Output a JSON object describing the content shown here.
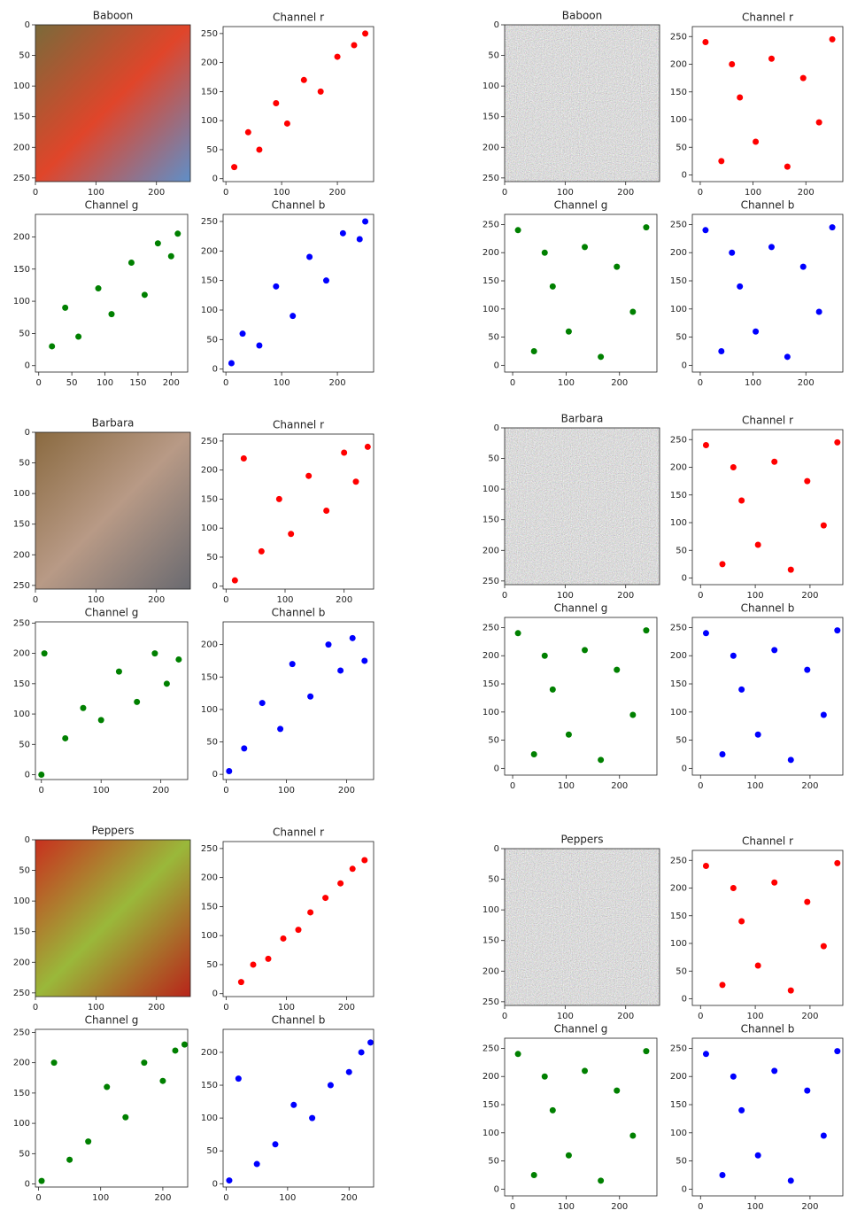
{
  "chart_data": [
    {
      "type": "image",
      "title": "Baboon",
      "xlim": [
        0,
        256
      ],
      "ylim": [
        256,
        0
      ],
      "xticks": [
        0,
        100,
        200
      ],
      "yticks": [
        0,
        50,
        100,
        150,
        200,
        250
      ]
    },
    {
      "type": "scatter",
      "title": "Channel r",
      "color": "red",
      "xlim": [
        -5,
        265
      ],
      "ylim": [
        -5,
        262
      ],
      "xticks": [
        0,
        100,
        200
      ],
      "yticks": [
        0,
        50,
        100,
        150,
        200,
        250
      ],
      "x": [
        15,
        40,
        60,
        90,
        110,
        140,
        170,
        200,
        230,
        250
      ],
      "y": [
        20,
        80,
        50,
        130,
        95,
        170,
        150,
        210,
        230,
        250
      ]
    },
    {
      "type": "scatter",
      "title": "Channel g",
      "color": "green",
      "xlim": [
        -5,
        225
      ],
      "ylim": [
        -10,
        235
      ],
      "xticks": [
        0,
        50,
        100,
        150,
        200
      ],
      "yticks": [
        0,
        50,
        100,
        150,
        200
      ],
      "x": [
        20,
        40,
        60,
        90,
        110,
        140,
        160,
        180,
        200,
        210
      ],
      "y": [
        30,
        90,
        45,
        120,
        80,
        160,
        110,
        190,
        170,
        205
      ]
    },
    {
      "type": "scatter",
      "title": "Channel b",
      "color": "blue",
      "xlim": [
        -5,
        265
      ],
      "ylim": [
        -5,
        262
      ],
      "xticks": [
        0,
        100,
        200
      ],
      "yticks": [
        0,
        50,
        100,
        150,
        200,
        250
      ],
      "x": [
        10,
        30,
        60,
        90,
        120,
        150,
        180,
        210,
        240,
        250
      ],
      "y": [
        10,
        60,
        40,
        140,
        90,
        190,
        150,
        230,
        220,
        250
      ]
    },
    {
      "type": "image",
      "title": "Baboon",
      "xlim": [
        0,
        256
      ],
      "ylim": [
        256,
        0
      ],
      "xticks": [
        0,
        100,
        200
      ],
      "yticks": [
        0,
        50,
        100,
        150,
        200,
        250
      ]
    },
    {
      "type": "scatter",
      "title": "Channel r",
      "color": "red",
      "xlim": [
        -15,
        270
      ],
      "ylim": [
        -12,
        268
      ],
      "xticks": [
        0,
        100,
        200
      ],
      "yticks": [
        0,
        50,
        100,
        150,
        200,
        250
      ],
      "x": [
        10,
        40,
        75,
        105,
        135,
        165,
        195,
        225,
        250,
        60
      ],
      "y": [
        240,
        25,
        140,
        60,
        210,
        15,
        175,
        95,
        245,
        200
      ]
    },
    {
      "type": "scatter",
      "title": "Channel g",
      "color": "green",
      "xlim": [
        -15,
        270
      ],
      "ylim": [
        -12,
        268
      ],
      "xticks": [
        0,
        100,
        200
      ],
      "yticks": [
        0,
        50,
        100,
        150,
        200,
        250
      ],
      "x": [
        10,
        40,
        75,
        105,
        135,
        165,
        195,
        225,
        250,
        60
      ],
      "y": [
        240,
        25,
        140,
        60,
        210,
        15,
        175,
        95,
        245,
        200
      ]
    },
    {
      "type": "scatter",
      "title": "Channel b",
      "color": "blue",
      "xlim": [
        -15,
        270
      ],
      "ylim": [
        -12,
        268
      ],
      "xticks": [
        0,
        100,
        200
      ],
      "yticks": [
        0,
        50,
        100,
        150,
        200,
        250
      ],
      "x": [
        10,
        40,
        75,
        105,
        135,
        165,
        195,
        225,
        250,
        60
      ],
      "y": [
        240,
        25,
        140,
        60,
        210,
        15,
        175,
        95,
        245,
        200
      ]
    },
    {
      "type": "image",
      "title": "Barbara",
      "xlim": [
        0,
        256
      ],
      "ylim": [
        256,
        0
      ],
      "xticks": [
        0,
        100,
        200
      ],
      "yticks": [
        0,
        50,
        100,
        150,
        200,
        250
      ]
    },
    {
      "type": "scatter",
      "title": "Channel r",
      "color": "red",
      "xlim": [
        -5,
        250
      ],
      "ylim": [
        -5,
        262
      ],
      "xticks": [
        0,
        100,
        200
      ],
      "yticks": [
        0,
        50,
        100,
        150,
        200,
        250
      ],
      "x": [
        15,
        30,
        60,
        90,
        110,
        140,
        170,
        200,
        220,
        240
      ],
      "y": [
        10,
        220,
        60,
        150,
        90,
        190,
        130,
        230,
        180,
        240
      ]
    },
    {
      "type": "scatter",
      "title": "Channel g",
      "color": "green",
      "xlim": [
        -10,
        245
      ],
      "ylim": [
        -8,
        252
      ],
      "xticks": [
        0,
        100,
        200
      ],
      "yticks": [
        0,
        50,
        100,
        150,
        200,
        250
      ],
      "x": [
        0,
        5,
        40,
        70,
        100,
        130,
        160,
        190,
        210,
        230
      ],
      "y": [
        0,
        200,
        60,
        110,
        90,
        170,
        120,
        200,
        150,
        190
      ]
    },
    {
      "type": "scatter",
      "title": "Channel b",
      "color": "blue",
      "xlim": [
        -5,
        245
      ],
      "ylim": [
        -8,
        235
      ],
      "xticks": [
        0,
        100,
        200
      ],
      "yticks": [
        0,
        50,
        100,
        150,
        200
      ],
      "x": [
        5,
        30,
        60,
        90,
        110,
        140,
        170,
        190,
        210,
        230
      ],
      "y": [
        5,
        40,
        110,
        70,
        170,
        120,
        200,
        160,
        210,
        175
      ]
    },
    {
      "type": "image",
      "title": "Barbara",
      "xlim": [
        0,
        256
      ],
      "ylim": [
        256,
        0
      ],
      "xticks": [
        0,
        100,
        200
      ],
      "yticks": [
        0,
        50,
        100,
        150,
        200,
        250
      ]
    },
    {
      "type": "scatter",
      "title": "Channel r",
      "color": "red",
      "xlim": [
        -15,
        260
      ],
      "ylim": [
        -12,
        268
      ],
      "xticks": [
        0,
        100,
        200
      ],
      "yticks": [
        0,
        50,
        100,
        150,
        200,
        250
      ],
      "x": [
        10,
        40,
        75,
        105,
        135,
        165,
        195,
        225,
        250,
        60
      ],
      "y": [
        240,
        25,
        140,
        60,
        210,
        15,
        175,
        95,
        245,
        200
      ]
    },
    {
      "type": "scatter",
      "title": "Channel g",
      "color": "green",
      "xlim": [
        -15,
        270
      ],
      "ylim": [
        -12,
        268
      ],
      "xticks": [
        0,
        100,
        200
      ],
      "yticks": [
        0,
        50,
        100,
        150,
        200,
        250
      ],
      "x": [
        10,
        40,
        75,
        105,
        135,
        165,
        195,
        225,
        250,
        60
      ],
      "y": [
        240,
        25,
        140,
        60,
        210,
        15,
        175,
        95,
        245,
        200
      ]
    },
    {
      "type": "scatter",
      "title": "Channel b",
      "color": "blue",
      "xlim": [
        -15,
        260
      ],
      "ylim": [
        -12,
        268
      ],
      "xticks": [
        0,
        100,
        200
      ],
      "yticks": [
        0,
        50,
        100,
        150,
        200,
        250
      ],
      "x": [
        10,
        40,
        75,
        105,
        135,
        165,
        195,
        225,
        250,
        60
      ],
      "y": [
        240,
        25,
        140,
        60,
        210,
        15,
        175,
        95,
        245,
        200
      ]
    },
    {
      "type": "image",
      "title": "Peppers",
      "xlim": [
        0,
        256
      ],
      "ylim": [
        256,
        0
      ],
      "xticks": [
        0,
        100,
        200
      ],
      "yticks": [
        0,
        50,
        100,
        150,
        200,
        250
      ]
    },
    {
      "type": "scatter",
      "title": "Channel r",
      "color": "red",
      "xlim": [
        -5,
        245
      ],
      "ylim": [
        -5,
        262
      ],
      "xticks": [
        0,
        100,
        200
      ],
      "yticks": [
        0,
        50,
        100,
        150,
        200,
        250
      ],
      "x": [
        25,
        45,
        70,
        95,
        120,
        140,
        165,
        190,
        210,
        230
      ],
      "y": [
        20,
        50,
        60,
        95,
        110,
        140,
        165,
        190,
        215,
        230
      ]
    },
    {
      "type": "scatter",
      "title": "Channel g",
      "color": "green",
      "xlim": [
        -5,
        240
      ],
      "ylim": [
        -5,
        255
      ],
      "xticks": [
        0,
        100,
        200
      ],
      "yticks": [
        0,
        50,
        100,
        150,
        200,
        250
      ],
      "x": [
        5,
        25,
        50,
        80,
        110,
        140,
        170,
        200,
        220,
        235
      ],
      "y": [
        5,
        200,
        40,
        70,
        160,
        110,
        200,
        170,
        220,
        230
      ]
    },
    {
      "type": "scatter",
      "title": "Channel b",
      "color": "blue",
      "xlim": [
        -5,
        240
      ],
      "ylim": [
        -5,
        235
      ],
      "xticks": [
        0,
        100,
        200
      ],
      "yticks": [
        0,
        50,
        100,
        150,
        200
      ],
      "x": [
        5,
        20,
        50,
        80,
        110,
        140,
        170,
        200,
        220,
        235
      ],
      "y": [
        5,
        160,
        30,
        60,
        120,
        100,
        150,
        170,
        200,
        215
      ]
    },
    {
      "type": "image",
      "title": "Peppers",
      "xlim": [
        0,
        256
      ],
      "ylim": [
        256,
        0
      ],
      "xticks": [
        0,
        100,
        200
      ],
      "yticks": [
        0,
        50,
        100,
        150,
        200,
        250
      ]
    },
    {
      "type": "scatter",
      "title": "Channel r",
      "color": "red",
      "xlim": [
        -15,
        260
      ],
      "ylim": [
        -12,
        268
      ],
      "xticks": [
        0,
        100,
        200
      ],
      "yticks": [
        0,
        50,
        100,
        150,
        200,
        250
      ],
      "x": [
        10,
        40,
        75,
        105,
        135,
        165,
        195,
        225,
        250,
        60
      ],
      "y": [
        240,
        25,
        140,
        60,
        210,
        15,
        175,
        95,
        245,
        200
      ]
    },
    {
      "type": "scatter",
      "title": "Channel g",
      "color": "green",
      "xlim": [
        -15,
        270
      ],
      "ylim": [
        -12,
        268
      ],
      "xticks": [
        0,
        100,
        200
      ],
      "yticks": [
        0,
        50,
        100,
        150,
        200,
        250
      ],
      "x": [
        10,
        40,
        75,
        105,
        135,
        165,
        195,
        225,
        250,
        60
      ],
      "y": [
        240,
        25,
        140,
        60,
        210,
        15,
        175,
        95,
        245,
        200
      ]
    },
    {
      "type": "scatter",
      "title": "Channel b",
      "color": "blue",
      "xlim": [
        -15,
        260
      ],
      "ylim": [
        -12,
        268
      ],
      "xticks": [
        0,
        100,
        200
      ],
      "yticks": [
        0,
        50,
        100,
        150,
        200,
        250
      ],
      "x": [
        10,
        40,
        75,
        105,
        135,
        165,
        195,
        225,
        250,
        60
      ],
      "y": [
        240,
        25,
        140,
        60,
        210,
        15,
        175,
        95,
        245,
        200
      ]
    }
  ]
}
